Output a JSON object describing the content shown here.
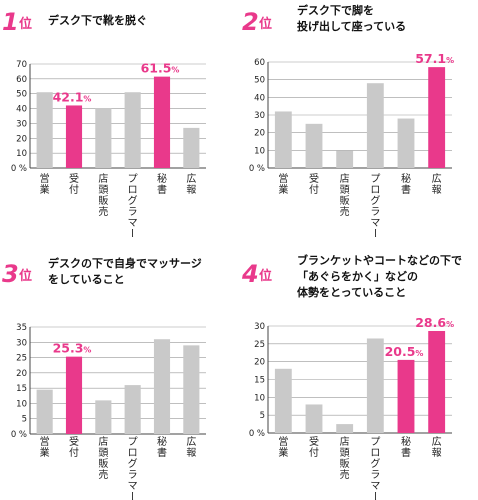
{
  "colors": {
    "highlight": "#e9398b",
    "bar": "#c9c9c9",
    "axis": "#444444",
    "grid": "#999999"
  },
  "chart_data": [
    {
      "type": "bar",
      "rank": "1",
      "rank_suffix": "位",
      "title_lines": [
        "デスク下で靴を脱ぐ"
      ],
      "categories": [
        "営業",
        "受付",
        "店頭販売",
        "プログラマー",
        "秘書",
        "広報"
      ],
      "values": [
        51,
        42.1,
        40,
        51,
        61.5,
        27
      ],
      "highlight": [
        1,
        4
      ],
      "labels": [
        {
          "index": 1,
          "big": "42.1",
          "small": "%"
        },
        {
          "index": 4,
          "big": "61.5",
          "small": "%"
        }
      ],
      "ylim": [
        0,
        70
      ],
      "ticks": [
        "0 %",
        "10",
        "20",
        "30",
        "40",
        "50",
        "60",
        "70"
      ]
    },
    {
      "type": "bar",
      "rank": "2",
      "rank_suffix": "位",
      "title_lines": [
        "デスク下で脚を",
        "投げ出して座っている"
      ],
      "categories": [
        "営業",
        "受付",
        "店頭販売",
        "プログラマー",
        "秘書",
        "広報"
      ],
      "values": [
        32,
        25,
        10,
        48,
        28,
        57.1
      ],
      "highlight": [
        5
      ],
      "labels": [
        {
          "index": 5,
          "big": "57.1",
          "small": "%"
        }
      ],
      "ylim": [
        0,
        60
      ],
      "ticks": [
        "0 %",
        "10",
        "20",
        "30",
        "40",
        "50",
        "60"
      ]
    },
    {
      "type": "bar",
      "rank": "3",
      "rank_suffix": "位",
      "title_lines": [
        "デスクの下で自身でマッサージ",
        "をしていること"
      ],
      "categories": [
        "営業",
        "受付",
        "店頭販売",
        "プログラマー",
        "秘書",
        "広報"
      ],
      "values": [
        14.5,
        25.3,
        11,
        16,
        31,
        29
      ],
      "highlight": [
        1
      ],
      "labels": [
        {
          "index": 1,
          "big": "25.3",
          "small": "%"
        }
      ],
      "ylim": [
        0,
        35
      ],
      "ticks": [
        "0 %",
        "5",
        "10",
        "15",
        "20",
        "25",
        "30",
        "35"
      ]
    },
    {
      "type": "bar",
      "rank": "4",
      "rank_suffix": "位",
      "title_lines": [
        "ブランケットやコートなどの下で",
        "「あぐらをかく」などの",
        "体勢をとっていること"
      ],
      "categories": [
        "営業",
        "受付",
        "店頭販売",
        "プログラマー",
        "秘書",
        "広報"
      ],
      "values": [
        18,
        8,
        2.5,
        26.5,
        20.5,
        28.6
      ],
      "highlight": [
        4,
        5
      ],
      "labels": [
        {
          "index": 4,
          "big": "20.5",
          "small": "%"
        },
        {
          "index": 5,
          "big": "28.6",
          "small": "%"
        }
      ],
      "ylim": [
        0,
        30
      ],
      "ticks": [
        "0 %",
        "5",
        "10",
        "15",
        "20",
        "25",
        "30"
      ]
    }
  ]
}
